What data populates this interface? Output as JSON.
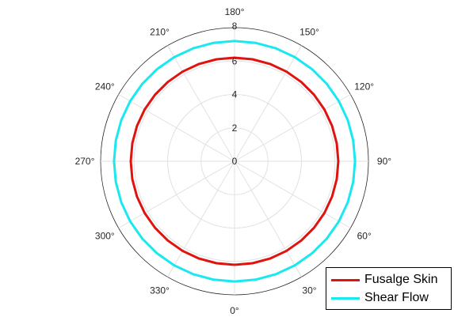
{
  "chart_data": {
    "type": "line",
    "projection": "polar",
    "theta_zero_location": "bottom",
    "theta_direction": "counterclockwise",
    "r_ticks": [
      "0",
      "2",
      "4",
      "6",
      "8"
    ],
    "r_lim": [
      0,
      8
    ],
    "theta_ticks": [
      "0°",
      "30°",
      "60°",
      "90°",
      "120°",
      "150°",
      "180°",
      "210°",
      "240°",
      "270°",
      "300°",
      "330°"
    ],
    "grid": true,
    "legend_position": "bottom-right",
    "series": [
      {
        "name": "Fusalge Skin",
        "color": "#e0130f",
        "r": 6.2
      },
      {
        "name": "Shear Flow",
        "color": "#1ae8f0",
        "r": 7.2
      }
    ]
  }
}
